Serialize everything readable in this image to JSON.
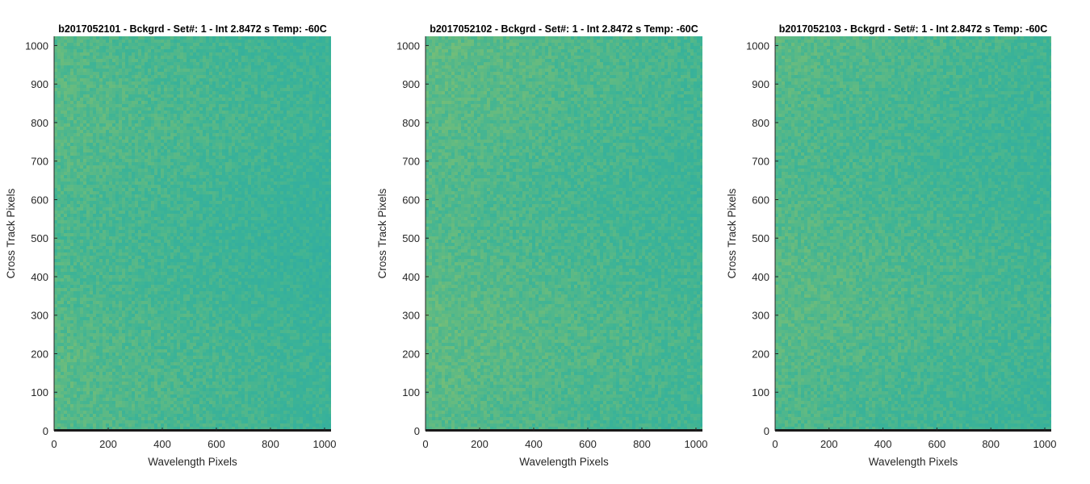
{
  "chart_data": [
    {
      "type": "heatmap",
      "title": "b2017052101 - Bckgrd - Set#: 1 - Int 2.8472 s Temp: -60C",
      "xlabel": "Wavelength Pixels",
      "ylabel": "Cross Track Pixels",
      "xlim": [
        0,
        1024
      ],
      "ylim": [
        0,
        1024
      ],
      "xticks": [
        0,
        200,
        400,
        600,
        800,
        1000
      ],
      "yticks": [
        0,
        100,
        200,
        300,
        400,
        500,
        600,
        700,
        800,
        900,
        1000
      ],
      "colormap": "parula",
      "grid": false,
      "description_values": {
        "left_edge_level": 0.63,
        "right_edge_level": 0.46
      }
    },
    {
      "type": "heatmap",
      "title": "b2017052102 - Bckgrd - Set#: 1 - Int 2.8472 s Temp: -60C",
      "xlabel": "Wavelength Pixels",
      "ylabel": "Cross Track Pixels",
      "xlim": [
        0,
        1024
      ],
      "ylim": [
        0,
        1024
      ],
      "xticks": [
        0,
        200,
        400,
        600,
        800,
        1000
      ],
      "yticks": [
        0,
        100,
        200,
        300,
        400,
        500,
        600,
        700,
        800,
        900,
        1000
      ],
      "colormap": "parula",
      "grid": false,
      "description_values": {
        "left_edge_level": 0.66,
        "right_edge_level": 0.52
      }
    },
    {
      "type": "heatmap",
      "title": "b2017052103 - Bckgrd - Set#: 1 - Int 2.8472 s Temp: -60C",
      "xlabel": "Wavelength Pixels",
      "ylabel": "Cross Track Pixels",
      "xlim": [
        0,
        1024
      ],
      "ylim": [
        0,
        1024
      ],
      "xticks": [
        0,
        200,
        400,
        600,
        800,
        1000
      ],
      "yticks": [
        0,
        100,
        200,
        300,
        400,
        500,
        600,
        700,
        800,
        900,
        1000
      ],
      "colormap": "parula",
      "grid": false,
      "description_values": {
        "left_edge_level": 0.64,
        "right_edge_level": 0.5
      }
    }
  ],
  "colors": {
    "low": "#1fa3b3",
    "mid": "#3bb397",
    "high": "#9cc562",
    "axis": "#262626",
    "baseline": "#1a1a1a"
  }
}
